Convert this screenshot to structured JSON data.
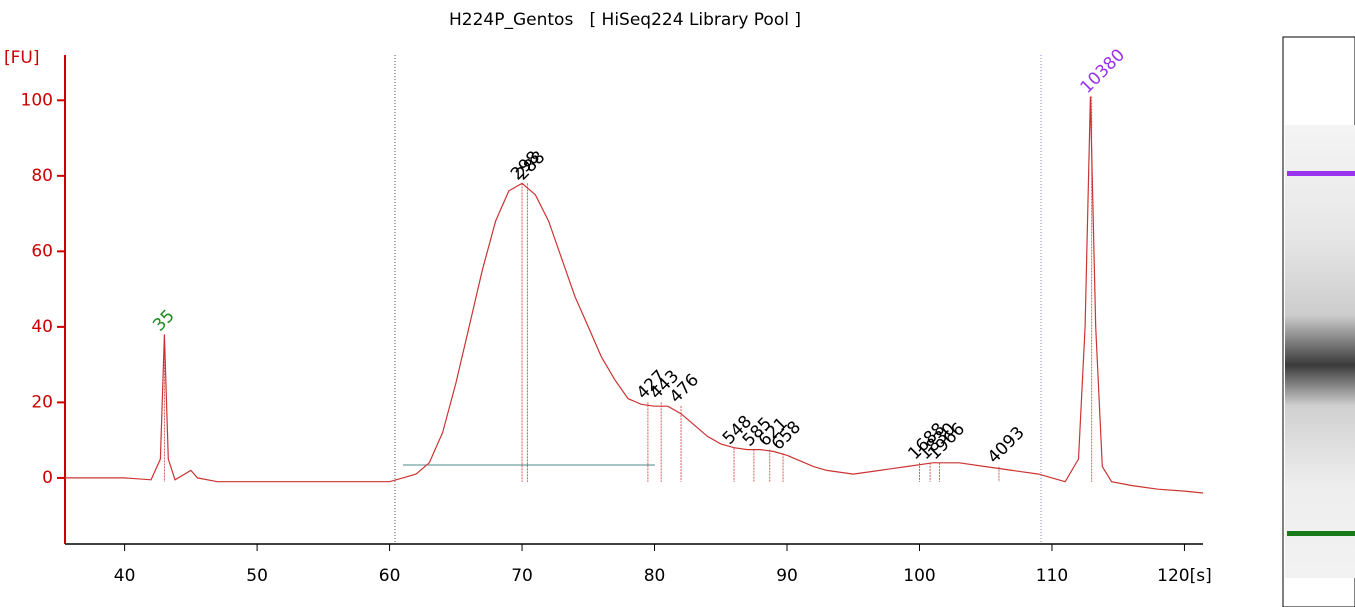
{
  "chart_data": {
    "type": "line",
    "title": "H224P_Gentos   [ HiSeq224 Library Pool ]",
    "ylabel": "[FU]",
    "color": "#cc3333",
    "x": [
      35.5,
      40,
      42,
      42.7,
      43,
      43.3,
      43.8,
      45,
      45.5,
      47,
      55,
      60,
      61,
      62,
      63,
      64,
      65,
      66,
      67,
      68,
      69,
      70,
      71,
      72,
      73,
      74,
      75,
      76,
      77,
      78,
      79,
      80,
      81,
      82,
      83,
      84,
      85,
      86,
      87,
      88,
      89,
      90,
      91,
      92,
      93,
      95,
      97,
      99,
      101,
      103,
      105,
      107,
      109,
      110,
      111,
      112,
      112.5,
      112.9,
      113.3,
      113.8,
      114.5,
      116,
      118,
      120,
      121.4
    ],
    "values": [
      0,
      0,
      -0.5,
      5,
      38,
      5,
      -0.5,
      2,
      0,
      -1,
      -1,
      -1,
      0,
      1,
      4,
      12,
      25,
      40,
      55,
      68,
      76,
      78,
      75,
      68,
      58,
      48,
      40,
      32,
      26,
      21,
      19.5,
      19,
      19,
      17,
      14,
      11,
      9,
      8,
      7.5,
      7.5,
      7,
      6,
      4.5,
      3,
      2,
      1,
      2,
      3,
      4,
      4,
      3,
      2,
      1,
      0,
      -1,
      5,
      40,
      101,
      40,
      3,
      -1,
      -2,
      -3,
      -3.5,
      -4
    ],
    "peaks": [
      {
        "label": "35",
        "x": 43,
        "y": 38,
        "color": "#1a8a1a"
      },
      {
        "label": "298",
        "x": 70,
        "y": 78,
        "color": "#000000"
      },
      {
        "label": "288",
        "x": 70.4,
        "y": 78,
        "color": "#000000"
      },
      {
        "label": "427",
        "x": 79.5,
        "y": 20,
        "color": "#000000"
      },
      {
        "label": "443",
        "x": 80.5,
        "y": 20,
        "color": "#000000"
      },
      {
        "label": "476",
        "x": 82,
        "y": 19,
        "color": "#000000"
      },
      {
        "label": "548",
        "x": 86,
        "y": 8,
        "color": "#000000"
      },
      {
        "label": "585",
        "x": 87.5,
        "y": 7.5,
        "color": "#000000"
      },
      {
        "label": "621",
        "x": 88.7,
        "y": 7.5,
        "color": "#000000"
      },
      {
        "label": "658",
        "x": 89.7,
        "y": 6.5,
        "color": "#000000"
      },
      {
        "label": "1688",
        "x": 100,
        "y": 4,
        "color": "#000000"
      },
      {
        "label": "1830",
        "x": 100.8,
        "y": 4,
        "color": "#000000"
      },
      {
        "label": "1966",
        "x": 101.5,
        "y": 4,
        "color": "#000000"
      },
      {
        "label": "4093",
        "x": 106,
        "y": 3,
        "color": "#000000"
      },
      {
        "label": "10380",
        "x": 113,
        "y": 101,
        "color": "#9933ee"
      }
    ],
    "xlim": [
      35.5,
      121.4
    ],
    "xticks": [
      40,
      50,
      60,
      70,
      80,
      90,
      100,
      110,
      {
        "value": 120,
        "label": "120[s]"
      }
    ],
    "ylim": [
      -17.5,
      112
    ],
    "yticks": [
      0,
      20,
      40,
      60,
      80,
      100
    ]
  }
}
